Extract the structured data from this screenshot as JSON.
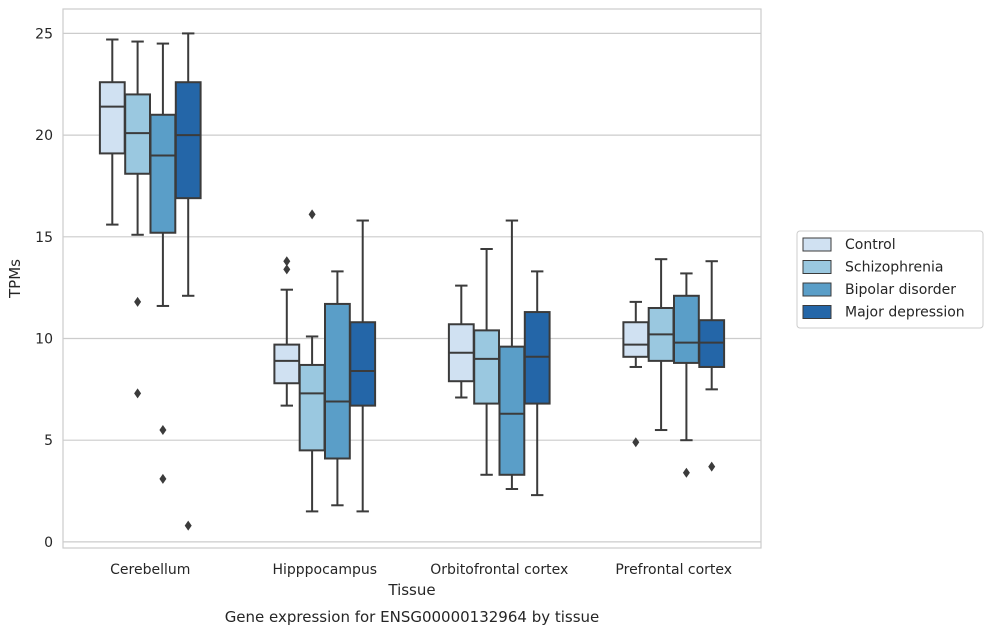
{
  "chart_data": {
    "type": "boxplot",
    "caption": "Gene expression for ENSG00000132964 by tissue",
    "xlabel": "Tissue",
    "ylabel": "TPMs",
    "ylim": [
      -0.3,
      26.2
    ],
    "yticks": [
      0,
      5,
      10,
      15,
      20,
      25
    ],
    "grid": "horizontal",
    "legend_position": "right",
    "categories": [
      "Cerebellum",
      "Hipppocampus",
      "Orbitofrontal cortex",
      "Prefrontal cortex"
    ],
    "series": [
      {
        "name": "Control",
        "color": "#d0e1f2",
        "boxes": [
          {
            "whislo": 15.6,
            "q1": 19.1,
            "med": 21.4,
            "q3": 22.6,
            "whishi": 24.7,
            "fliers": []
          },
          {
            "whislo": 6.7,
            "q1": 7.8,
            "med": 8.9,
            "q3": 9.7,
            "whishi": 12.4,
            "fliers": [
              13.4,
              13.8
            ]
          },
          {
            "whislo": 7.1,
            "q1": 7.9,
            "med": 9.3,
            "q3": 10.7,
            "whishi": 12.6,
            "fliers": []
          },
          {
            "whislo": 8.6,
            "q1": 9.1,
            "med": 9.7,
            "q3": 10.8,
            "whishi": 11.8,
            "fliers": [
              4.9
            ]
          }
        ]
      },
      {
        "name": "Schizophrenia",
        "color": "#9ac8e0",
        "boxes": [
          {
            "whislo": 15.1,
            "q1": 18.1,
            "med": 20.1,
            "q3": 22.0,
            "whishi": 24.6,
            "fliers": [
              11.8,
              7.3
            ]
          },
          {
            "whislo": 1.5,
            "q1": 4.5,
            "med": 7.3,
            "q3": 8.7,
            "whishi": 10.1,
            "fliers": [
              16.1
            ]
          },
          {
            "whislo": 3.3,
            "q1": 6.8,
            "med": 9.0,
            "q3": 10.4,
            "whishi": 14.4,
            "fliers": []
          },
          {
            "whislo": 5.5,
            "q1": 8.9,
            "med": 10.2,
            "q3": 11.5,
            "whishi": 13.9,
            "fliers": []
          }
        ]
      },
      {
        "name": "Bipolar disorder",
        "color": "#5a9ec8",
        "boxes": [
          {
            "whislo": 11.6,
            "q1": 15.2,
            "med": 19.0,
            "q3": 21.0,
            "whishi": 24.5,
            "fliers": [
              5.5,
              3.1
            ]
          },
          {
            "whislo": 1.8,
            "q1": 4.1,
            "med": 6.9,
            "q3": 11.7,
            "whishi": 13.3,
            "fliers": []
          },
          {
            "whislo": 2.6,
            "q1": 3.3,
            "med": 6.3,
            "q3": 9.6,
            "whishi": 15.8,
            "fliers": []
          },
          {
            "whislo": 5.0,
            "q1": 8.8,
            "med": 9.8,
            "q3": 12.1,
            "whishi": 13.2,
            "fliers": [
              3.4
            ]
          }
        ]
      },
      {
        "name": "Major depression",
        "color": "#2466a8",
        "boxes": [
          {
            "whislo": 12.1,
            "q1": 16.9,
            "med": 20.0,
            "q3": 22.6,
            "whishi": 25.0,
            "fliers": [
              0.8
            ]
          },
          {
            "whislo": 1.5,
            "q1": 6.7,
            "med": 8.4,
            "q3": 10.8,
            "whishi": 15.8,
            "fliers": []
          },
          {
            "whislo": 2.3,
            "q1": 6.8,
            "med": 9.1,
            "q3": 11.3,
            "whishi": 13.3,
            "fliers": []
          },
          {
            "whislo": 7.5,
            "q1": 8.6,
            "med": 9.8,
            "q3": 10.9,
            "whishi": 13.8,
            "fliers": [
              3.7
            ]
          }
        ]
      }
    ]
  }
}
